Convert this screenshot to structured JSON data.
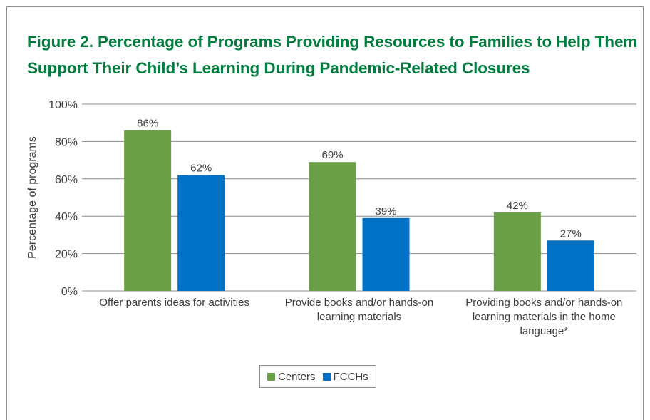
{
  "figure_title": "Figure 2. Percentage of Programs Providing Resources to Families to Help Them Support Their Child’s Learning During Pandemic-Related Closures",
  "colors": {
    "title": "#007c3e",
    "centers": "#6a9f48",
    "fcchs": "#0071c5",
    "grid": "#8c8c8c"
  },
  "chart_data": {
    "type": "bar",
    "title": "",
    "xlabel": "",
    "ylabel": "Percentage of programs",
    "ylim": [
      0,
      100
    ],
    "yticks": [
      "0%",
      "20%",
      "40%",
      "60%",
      "80%",
      "100%"
    ],
    "grid": true,
    "legend_placement": "bottom",
    "categories": [
      [
        "Offer parents ideas for activities"
      ],
      [
        "Provide books and/or hands-on",
        "learning materials"
      ],
      [
        "Providing books and/or hands-on",
        "learning materials in the home",
        "language*"
      ]
    ],
    "series": [
      {
        "name": "Centers",
        "values": [
          86,
          69,
          42
        ],
        "labels": [
          "86%",
          "69%",
          "42%"
        ]
      },
      {
        "name": "FCCHs",
        "values": [
          62,
          39,
          27
        ],
        "labels": [
          "62%",
          "39%",
          "27%"
        ]
      }
    ]
  }
}
